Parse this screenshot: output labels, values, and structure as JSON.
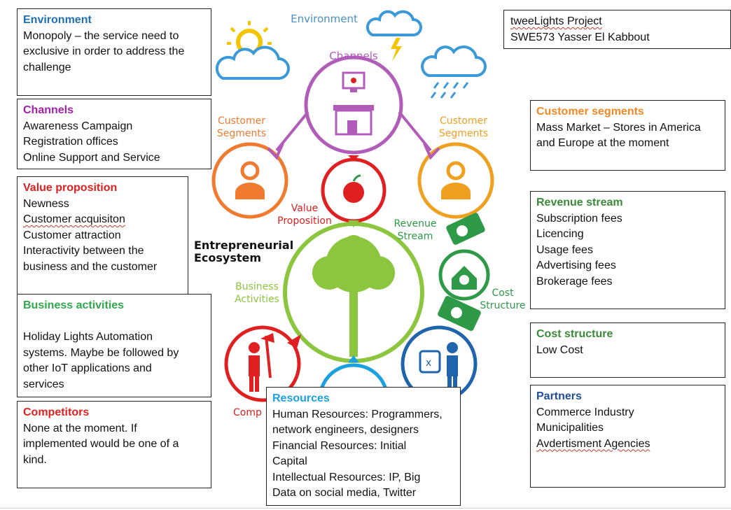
{
  "title_box": {
    "line1": "tweeLights Project",
    "line2": "SWE573 Yasser El Kabbout"
  },
  "boxes": {
    "environment": {
      "heading": "Environment",
      "color": "#1f6fb5",
      "lines": [
        "Monopoly – the service need to",
        "exclusive in order to address the",
        "challenge"
      ]
    },
    "channels": {
      "heading": "Channels",
      "color": "#a020a8",
      "lines": [
        "Awareness Campaign",
        "Registration offices",
        "Online Support and Service"
      ]
    },
    "value_proposition": {
      "heading": "Value proposition",
      "color": "#e02020",
      "lines": [
        "Newness",
        "Customer acquisiton",
        "Customer attraction",
        "Interactivity between the",
        "business and the customer"
      ]
    },
    "business_activities": {
      "heading": "Business activities",
      "color": "#2fa84f",
      "lines": [
        "",
        "Holiday Lights Automation",
        "systems. Maybe be followed by",
        "other IoT applications and",
        "services"
      ]
    },
    "competitors": {
      "heading": "Competitors",
      "color": "#e02020",
      "lines": [
        "None at the moment. If",
        "implemented would be one of a",
        "kind."
      ]
    },
    "resources": {
      "heading": "Resources",
      "color": "#1ba1e2",
      "lines": [
        "Human Resources: Programmers,",
        "network engineers, designers",
        "Financial Resources: Initial",
        "Capital",
        "Intellectual Resources: IP, Big",
        "Data on social media, Twitter"
      ]
    },
    "customer_segments": {
      "heading": "Customer segments",
      "color": "#f08a24",
      "lines": [
        "Mass Market – Stores in America",
        "and Europe at the moment"
      ]
    },
    "revenue_stream": {
      "heading": "Revenue stream",
      "color": "#3a8a3a",
      "lines": [
        "Subscription fees",
        "Licencing",
        "Usage fees",
        "Advertising fees",
        "Brokerage fees"
      ]
    },
    "cost_structure": {
      "heading": "Cost structure",
      "color": "#3a8a3a",
      "lines": [
        "Low Cost"
      ]
    },
    "partners": {
      "heading": "Partners",
      "color": "#1f4e9a",
      "lines": [
        "Commerce Industry",
        "Municipalities",
        "Avdertisment Agencies"
      ]
    }
  },
  "diagram": {
    "environment": "Environment",
    "channels": "Channels",
    "customer_segments_1": "Customer",
    "customer_segments_2": "Segments",
    "value_proposition_1": "Value",
    "value_proposition_2": "Proposition",
    "revenue_stream_1": "Revenue",
    "revenue_stream_2": "Stream",
    "entrepreneurial_1": "Entrepreneurial",
    "entrepreneurial_2": "Ecosystem",
    "business_activities_1": "Business",
    "business_activities_2": "Activities",
    "cost_structure_1": "Cost",
    "cost_structure_2": "Structure",
    "competitors_partial": "Comp",
    "dollar": "$"
  },
  "colors": {
    "channels": "#b05cb8",
    "customer": "#f0a020",
    "customer_left": "#f07a30",
    "value": "#e02020",
    "tree": "#8cc63f",
    "revenue": "#2e9a48",
    "partner_blue": "#1f64ad",
    "competitor_red": "#e02020",
    "environment_text": "#4a90c8",
    "cloud": "#3a9ad9",
    "sun": "#f5c400"
  }
}
